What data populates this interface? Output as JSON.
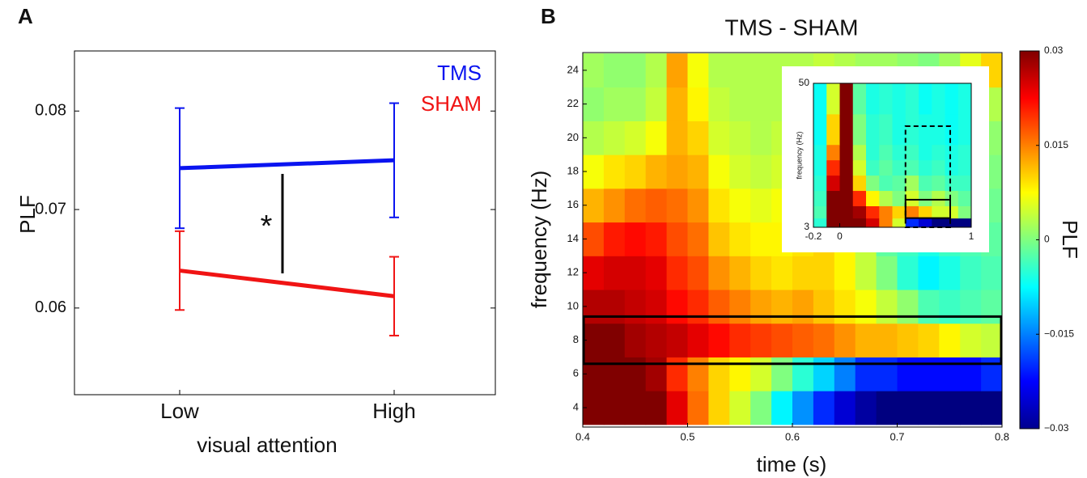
{
  "chart_data": [
    {
      "type": "line",
      "panel": "A",
      "xlabel": "visual attention",
      "ylabel": "PLF",
      "categories": [
        "Low",
        "High"
      ],
      "series": [
        {
          "name": "TMS",
          "color": "#0a14f0",
          "values": [
            0.0742,
            0.075
          ],
          "errors": [
            0.0061,
            0.0058
          ]
        },
        {
          "name": "SHAM",
          "color": "#f01414",
          "values": [
            0.0638,
            0.0612
          ],
          "errors": [
            0.004,
            0.004
          ]
        }
      ],
      "ylim": [
        0.0512,
        0.0861
      ],
      "yticks": [
        0.06,
        0.07,
        0.08
      ],
      "annotation": "*",
      "legend": "upper right"
    },
    {
      "type": "heatmap",
      "panel": "B",
      "title": "TMS - SHAM",
      "xlabel": "time (s)",
      "ylabel": "frequency (Hz)",
      "xbins": [
        0.4,
        0.42,
        0.44,
        0.46,
        0.48,
        0.5,
        0.52,
        0.54,
        0.56,
        0.58,
        0.6,
        0.62,
        0.64,
        0.66,
        0.68,
        0.7,
        0.72,
        0.74,
        0.76,
        0.78,
        0.8
      ],
      "ybins": [
        3,
        5,
        7,
        9,
        11,
        13,
        15,
        17,
        19,
        21,
        23,
        25
      ],
      "z": [
        [
          0.03,
          0.03,
          0.03,
          0.03,
          0.024,
          0.016,
          0.01,
          0.005,
          0.0,
          -0.008,
          -0.014,
          -0.02,
          -0.025,
          -0.028,
          -0.03,
          -0.03,
          -0.03,
          -0.03,
          -0.03,
          -0.03
        ],
        [
          0.03,
          0.03,
          0.03,
          0.028,
          0.02,
          0.015,
          0.01,
          0.008,
          0.005,
          0.0,
          -0.005,
          -0.01,
          -0.015,
          -0.02,
          -0.02,
          -0.022,
          -0.022,
          -0.022,
          -0.022,
          -0.02
        ],
        [
          0.03,
          0.03,
          0.028,
          0.027,
          0.026,
          0.024,
          0.022,
          0.02,
          0.019,
          0.018,
          0.017,
          0.016,
          0.014,
          0.012,
          0.012,
          0.011,
          0.01,
          0.008,
          0.005,
          0.004
        ],
        [
          0.027,
          0.027,
          0.026,
          0.025,
          0.022,
          0.02,
          0.017,
          0.015,
          0.013,
          0.012,
          0.013,
          0.011,
          0.009,
          0.007,
          0.004,
          0.001,
          -0.003,
          -0.004,
          -0.003,
          -0.002
        ],
        [
          0.024,
          0.025,
          0.025,
          0.024,
          0.02,
          0.018,
          0.014,
          0.012,
          0.01,
          0.009,
          0.01,
          0.01,
          0.008,
          0.004,
          0.0,
          -0.005,
          -0.008,
          -0.006,
          -0.004,
          -0.003
        ],
        [
          0.018,
          0.021,
          0.022,
          0.021,
          0.018,
          0.016,
          0.011,
          0.009,
          0.008,
          0.008,
          0.009,
          0.01,
          0.008,
          0.004,
          -0.002,
          -0.004,
          -0.006,
          -0.004,
          -0.003,
          -0.002
        ],
        [
          0.012,
          0.014,
          0.016,
          0.017,
          0.016,
          0.014,
          0.009,
          0.007,
          0.006,
          0.007,
          0.008,
          0.008,
          0.006,
          0.003,
          -0.001,
          -0.003,
          -0.004,
          -0.003,
          -0.002,
          -0.001
        ],
        [
          0.007,
          0.009,
          0.01,
          0.012,
          0.013,
          0.012,
          0.007,
          0.005,
          0.004,
          0.005,
          0.006,
          0.006,
          0.004,
          0.002,
          0.0,
          -0.002,
          -0.003,
          -0.002,
          -0.001,
          0.0
        ],
        [
          0.003,
          0.004,
          0.005,
          0.007,
          0.012,
          0.01,
          0.005,
          0.004,
          0.003,
          0.004,
          0.005,
          0.005,
          0.003,
          0.002,
          0.0,
          -0.001,
          -0.002,
          -0.001,
          0.0,
          0.001
        ],
        [
          0.001,
          0.002,
          0.002,
          0.004,
          0.012,
          0.008,
          0.004,
          0.003,
          0.003,
          0.003,
          0.004,
          0.004,
          0.003,
          0.002,
          0.001,
          0.0,
          -0.001,
          0.0,
          0.001,
          0.003
        ],
        [
          0.002,
          0.001,
          0.001,
          0.003,
          0.013,
          0.007,
          0.003,
          0.003,
          0.003,
          0.003,
          0.003,
          0.004,
          0.003,
          0.002,
          0.002,
          0.001,
          0.0,
          0.002,
          0.006,
          0.01
        ]
      ],
      "xlim": [
        0.4,
        0.8
      ],
      "ylim": [
        2.85,
        25.05
      ],
      "xticks": [
        0.4,
        0.5,
        0.6,
        0.7,
        0.8
      ],
      "yticks": [
        4,
        6,
        8,
        10,
        12,
        14,
        16,
        18,
        20,
        22,
        24
      ],
      "colormap": "jet",
      "clim": [
        -0.03,
        0.03
      ],
      "colorbar": {
        "label": "PLF",
        "ticks": [
          0.03,
          0.015,
          0,
          {
            "value": -0.015,
            "label": "−0.015"
          },
          {
            "value": -0.03,
            "label": "−0.03"
          }
        ]
      },
      "inset": {
        "ylabel": "frequency (Hz)",
        "xbins": [
          -0.2,
          -0.1,
          0,
          0.1,
          0.2,
          0.3,
          0.4,
          0.5,
          0.6,
          0.7,
          0.8,
          0.9,
          1
        ],
        "ybins": [
          3,
          6,
          10,
          15,
          20,
          25,
          30,
          40,
          50
        ],
        "z": [
          [
            -0.005,
            0.03,
            0.03,
            0.03,
            0.025,
            0.015,
            0.005,
            -0.02,
            -0.025,
            -0.03,
            -0.03,
            -0.03
          ],
          [
            -0.003,
            0.03,
            0.03,
            0.028,
            0.02,
            0.015,
            0.01,
            0.015,
            0.01,
            0.005,
            0.005,
            0.0
          ],
          [
            -0.004,
            0.03,
            0.03,
            0.02,
            0.008,
            0.003,
            0.0,
            0.005,
            0.0,
            0.003,
            0.0,
            -0.002
          ],
          [
            -0.005,
            0.025,
            0.03,
            0.01,
            0.0,
            -0.003,
            -0.002,
            0.002,
            -0.003,
            -0.002,
            -0.004,
            -0.004
          ],
          [
            -0.006,
            0.02,
            0.03,
            0.005,
            -0.004,
            -0.002,
            -0.004,
            -0.003,
            -0.005,
            -0.004,
            -0.006,
            -0.005
          ],
          [
            -0.006,
            0.015,
            0.03,
            0.003,
            -0.005,
            -0.003,
            -0.005,
            -0.004,
            -0.006,
            -0.005,
            -0.006,
            -0.005
          ],
          [
            -0.007,
            0.01,
            0.03,
            0.0,
            -0.005,
            -0.004,
            -0.006,
            -0.005,
            -0.006,
            -0.006,
            -0.007,
            -0.006
          ],
          [
            -0.007,
            0.005,
            0.03,
            -0.002,
            -0.006,
            -0.005,
            -0.006,
            -0.005,
            -0.007,
            -0.006,
            -0.007,
            -0.006
          ]
        ],
        "xlim": [
          -0.2,
          1
        ],
        "ylim": [
          3,
          50
        ],
        "xticks": [
          -0.2,
          0,
          1
        ],
        "yticks": [
          3,
          50
        ]
      }
    }
  ]
}
